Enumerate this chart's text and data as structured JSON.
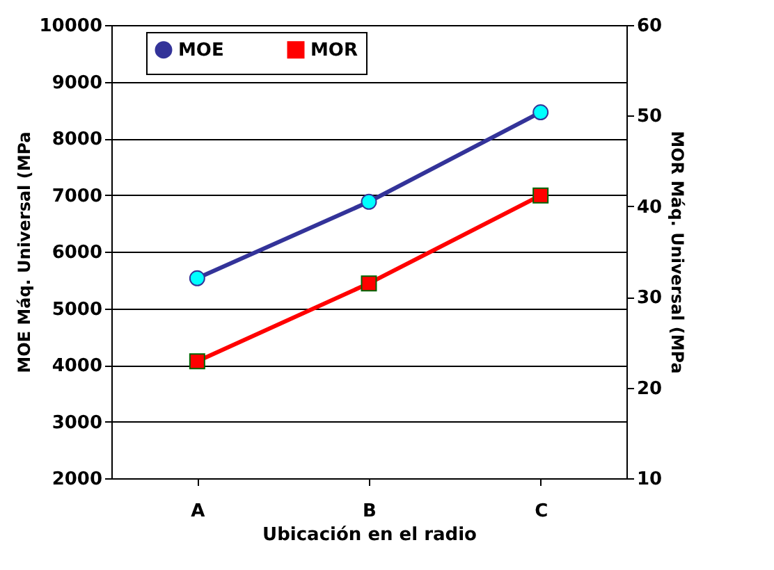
{
  "chart_data": {
    "type": "line",
    "xlabel": "Ubicación en el radio",
    "ylabel": "MOE Máq. Universal (MPa",
    "y2label": "MOR Máq. Universal (MPa",
    "categories": [
      "A",
      "B",
      "C"
    ],
    "series": [
      {
        "name": "MOE",
        "color": "#333399",
        "values": [
          5530,
          6880,
          8460
        ],
        "marker": "circle"
      },
      {
        "name": "MOR",
        "color": "#ff0000",
        "values": [
          22.9,
          31.5,
          41.2
        ],
        "marker": "square",
        "axis": "y2"
      }
    ],
    "ylim": [
      2000,
      10000
    ],
    "yticks": [
      2000,
      3000,
      4000,
      5000,
      6000,
      7000,
      8000,
      9000,
      10000
    ],
    "y2lim": [
      10,
      60
    ],
    "y2ticks": [
      10,
      20,
      30,
      40,
      50,
      60
    ],
    "grid": "y",
    "legend": "top left",
    "line_style": "solid"
  }
}
